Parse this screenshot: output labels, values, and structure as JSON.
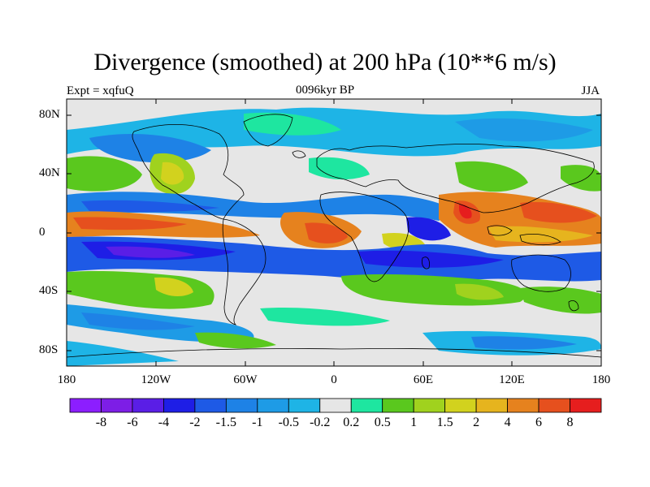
{
  "title": "Divergence (smoothed) at 200 hPa (10**6 m/s)",
  "left_subtitle": "Expt = xqfuQ",
  "center_subtitle": "0096kyr BP",
  "right_subtitle": "JJA",
  "y_axis": {
    "ticks": [
      "80N",
      "40N",
      "0",
      "40S",
      "80S"
    ]
  },
  "x_axis": {
    "ticks": [
      "180",
      "120W",
      "60W",
      "0",
      "60E",
      "120E",
      "180"
    ]
  },
  "colorbar": {
    "colors": [
      "#8c1eff",
      "#7d1ee6",
      "#5a1ee6",
      "#1e1ee6",
      "#1e5ae6",
      "#1e82e6",
      "#1e9be6",
      "#1eb4e6",
      "#e6e6e6",
      "#1ee6a0",
      "#5ac81e",
      "#a0d21e",
      "#d2d21e",
      "#e6b41e",
      "#e6821e",
      "#e6501e",
      "#e61e1e"
    ],
    "labels": [
      "-8",
      "-6",
      "-4",
      "-2",
      "-1.5",
      "-1",
      "-0.5",
      "-0.2",
      "0.2",
      "0.5",
      "1",
      "1.5",
      "2",
      "4",
      "6",
      "8"
    ]
  },
  "palette": {
    "ocean_bg": "#e6e6e6",
    "coast": "#000000"
  }
}
